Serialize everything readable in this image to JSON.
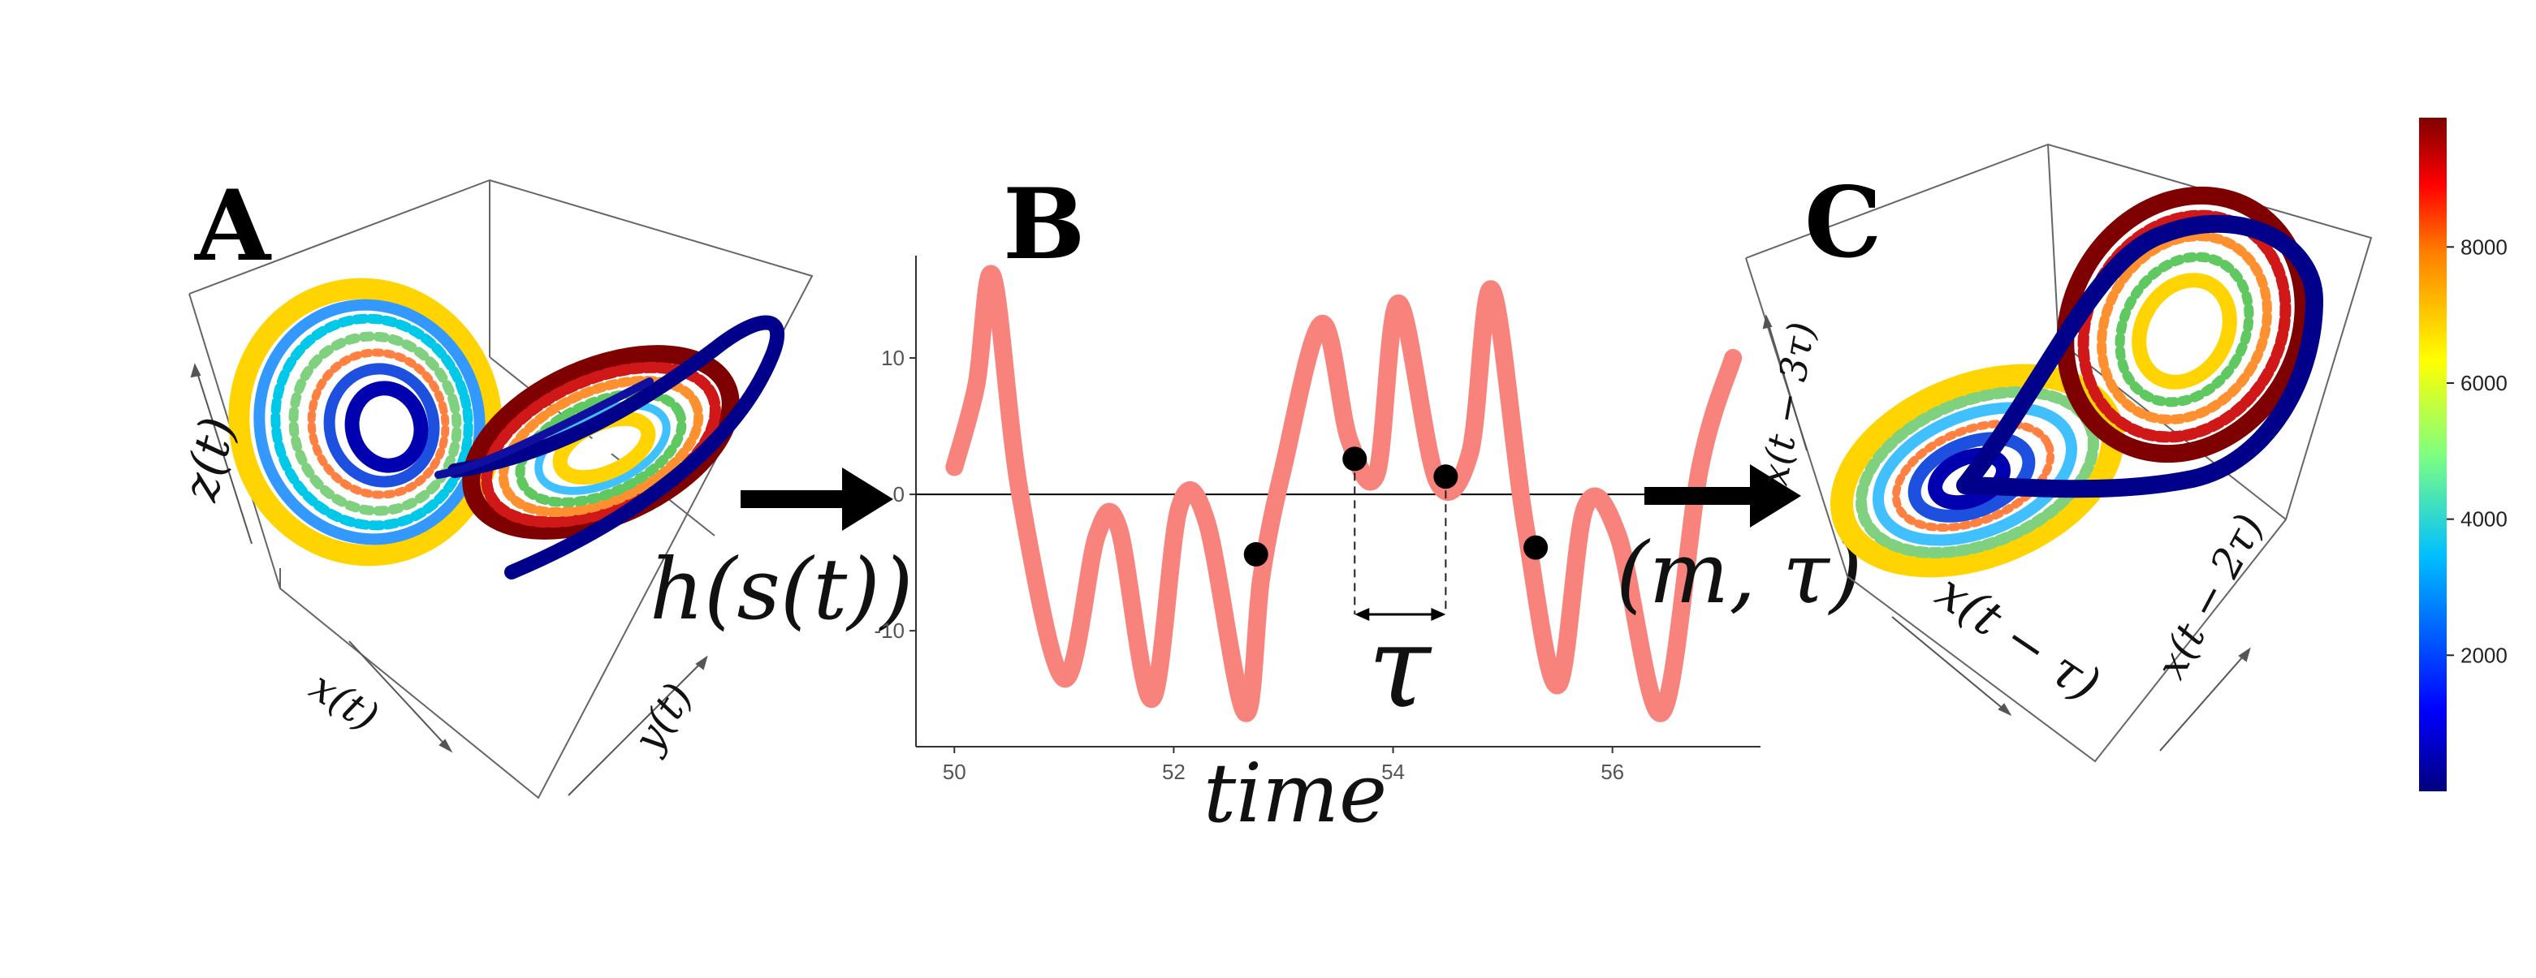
{
  "panels": {
    "a": {
      "letter": "A",
      "axes": {
        "x": "x(t)",
        "y": "y(t)",
        "z": "z(t)"
      },
      "arrow_label": "h(s(t))"
    },
    "b": {
      "letter": "B",
      "xlabel": "time",
      "tau_label": "τ",
      "arrow_label": "(m, τ)"
    },
    "c": {
      "letter": "C",
      "axes": {
        "x": "x(t − τ)",
        "y": "x(t − 2τ)",
        "z": "x(t − 3τ)"
      }
    }
  },
  "colorbar": {
    "ticks": [
      "2000",
      "4000",
      "6000",
      "8000"
    ],
    "colors": [
      "#00007f",
      "#0000ff",
      "#00bfff",
      "#7fff7f",
      "#ffff00",
      "#ff7f00",
      "#ff0000",
      "#7f0000"
    ]
  },
  "chart_data": {
    "type": "line",
    "x": [
      50.0,
      50.2,
      50.35,
      50.6,
      51.0,
      51.3,
      51.5,
      51.8,
      52.05,
      52.3,
      52.65,
      52.8,
      53.0,
      53.35,
      53.6,
      53.85,
      54.05,
      54.4,
      54.7,
      54.9,
      55.2,
      55.5,
      55.75,
      56.05,
      56.45,
      56.8,
      57.1
    ],
    "values": [
      2,
      8,
      16,
      0,
      -13.5,
      -3,
      -2.5,
      -15,
      -1,
      -2,
      -16,
      -6,
      2,
      12.5,
      4,
      1.5,
      14,
      1,
      3,
      15,
      -2,
      -14,
      -1,
      -3,
      -16,
      2,
      10
    ],
    "color": "#f8837c",
    "markers": [
      {
        "x": 52.75,
        "y": -4.4
      },
      {
        "x": 53.65,
        "y": 2.6
      },
      {
        "x": 54.48,
        "y": 1.3
      },
      {
        "x": 55.3,
        "y": -3.9
      }
    ],
    "tau_between": [
      53.65,
      54.48
    ],
    "xticks": [
      "50",
      "52",
      "54",
      "56"
    ],
    "yticks": [
      "10",
      "0",
      "-10"
    ],
    "xlim": [
      49.65,
      57.35
    ],
    "ylim": [
      -18.5,
      17.5
    ],
    "xlabel": "time"
  }
}
